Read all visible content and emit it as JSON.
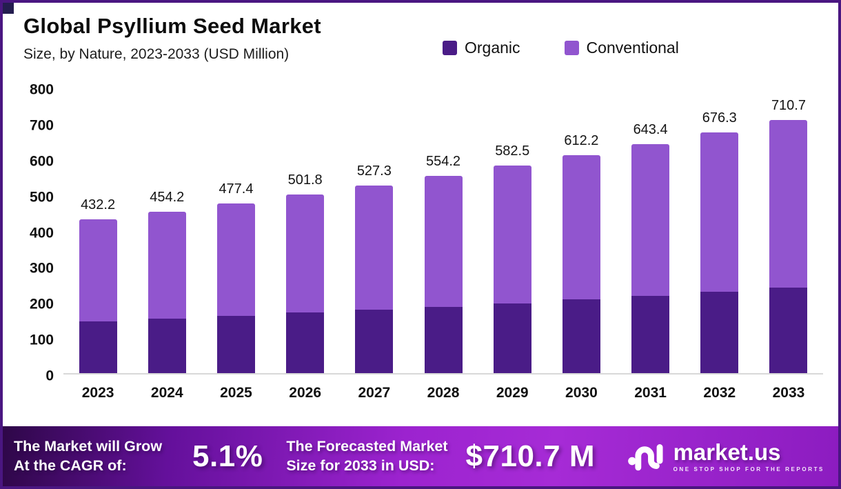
{
  "header": {
    "title": "Global Psyllium Seed Market",
    "subtitle": "Size, by Nature, 2023-2033 (USD Million)"
  },
  "legend": [
    {
      "label": "Organic",
      "color": "#4a1c87"
    },
    {
      "label": "Conventional",
      "color": "#9155cf"
    }
  ],
  "chart_data": {
    "type": "bar",
    "stacked": true,
    "title": "Global Psyllium Seed Market",
    "subtitle": "Size, by Nature, 2023-2033 (USD Million)",
    "unit": "USD Million",
    "categories": [
      "2023",
      "2024",
      "2025",
      "2026",
      "2027",
      "2028",
      "2029",
      "2030",
      "2031",
      "2032",
      "2033"
    ],
    "series": [
      {
        "name": "Organic",
        "color": "#4a1c87",
        "values": [
          145,
          153,
          161,
          170,
          178,
          187,
          196,
          207,
          218,
          229,
          240
        ]
      },
      {
        "name": "Conventional",
        "color": "#9155cf",
        "values": [
          287.2,
          301.2,
          316.4,
          331.8,
          349.3,
          367.2,
          386.5,
          405.2,
          425.4,
          447.3,
          470.7
        ]
      }
    ],
    "totals": [
      "432.2",
      "454.2",
      "477.4",
      "501.8",
      "527.3",
      "554.2",
      "582.5",
      "612.2",
      "643.4",
      "676.3",
      "710.7"
    ],
    "ylim": [
      0,
      800
    ],
    "yticks": [
      0,
      100,
      200,
      300,
      400,
      500,
      600,
      700,
      800
    ],
    "grid": false,
    "legend_position": "top-right"
  },
  "footer": {
    "cagr": {
      "label_line1": "The Market will Grow",
      "label_line2": "At the CAGR of:",
      "value": "5.1%"
    },
    "forecast": {
      "label_line1": "The Forecasted Market",
      "label_line2": "Size for 2033 in USD:",
      "value": "$710.7 M"
    },
    "brand": {
      "name": "market.us",
      "tagline": "ONE STOP SHOP FOR THE REPORTS"
    }
  }
}
